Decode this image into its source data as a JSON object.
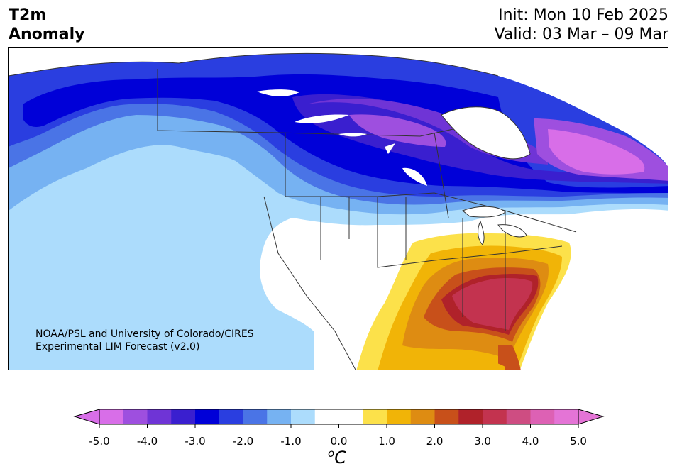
{
  "header": {
    "variable": "T2m",
    "product": "Anomaly",
    "init": "Init: Mon 10 Feb 2025",
    "valid": "Valid: 03 Mar – 09 Mar"
  },
  "map": {
    "region": "North America",
    "credit_line1": "NOAA/PSL and University of Colorado/CIRES",
    "credit_line2": "Experimental LIM Forecast (v2.0)"
  },
  "colorbar": {
    "unit_base": "C",
    "unit_sup": "o",
    "ticks": [
      "-5.0",
      "-4.0",
      "-3.0",
      "-2.0",
      "-1.0",
      "0.0",
      "1.0",
      "2.0",
      "3.0",
      "4.0",
      "5.0"
    ],
    "colors": [
      "#d86ee8",
      "#9e4fdf",
      "#6f34d6",
      "#3a1fcf",
      "#0000d8",
      "#2a3ee0",
      "#4a74e6",
      "#76b2f2",
      "#acdcfc",
      "#ffffff",
      "#ffffff",
      "#fce14a",
      "#f1b407",
      "#de8c12",
      "#c8501a",
      "#b0222a",
      "#c3334f",
      "#ce4d82",
      "#dd61b4",
      "#e474d6"
    ],
    "under_color": "#d86ee8",
    "over_color": "#e474d6"
  }
}
